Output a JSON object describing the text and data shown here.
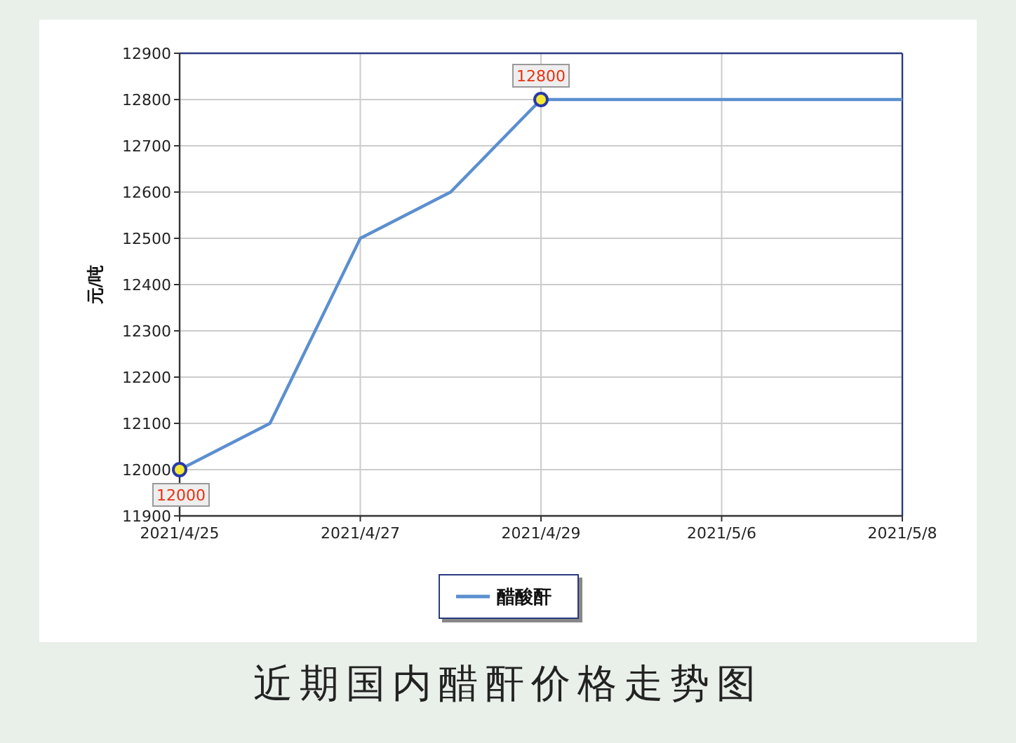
{
  "chart_data": {
    "type": "line",
    "title": "近期国内醋酐价格走势图",
    "ylabel": "元/吨",
    "categories": [
      "2021/4/25",
      null,
      "2021/4/27",
      null,
      "2021/4/29",
      null,
      "2021/5/6",
      null,
      "2021/5/8"
    ],
    "series": [
      {
        "name": "醋酸酐",
        "color": "#5b8fd0",
        "values": [
          12000,
          12100,
          12500,
          12600,
          12800,
          12800,
          12800,
          12800,
          12800
        ],
        "value_labels": [
          "12000",
          null,
          null,
          null,
          "12800",
          null,
          null,
          null,
          null
        ]
      }
    ],
    "ylim": [
      11900,
      12900
    ],
    "yticks": [
      11900,
      12000,
      12100,
      12200,
      12300,
      12400,
      12500,
      12600,
      12700,
      12800,
      12900
    ],
    "grid": true,
    "legend": "bottom",
    "line_style": "solid"
  }
}
